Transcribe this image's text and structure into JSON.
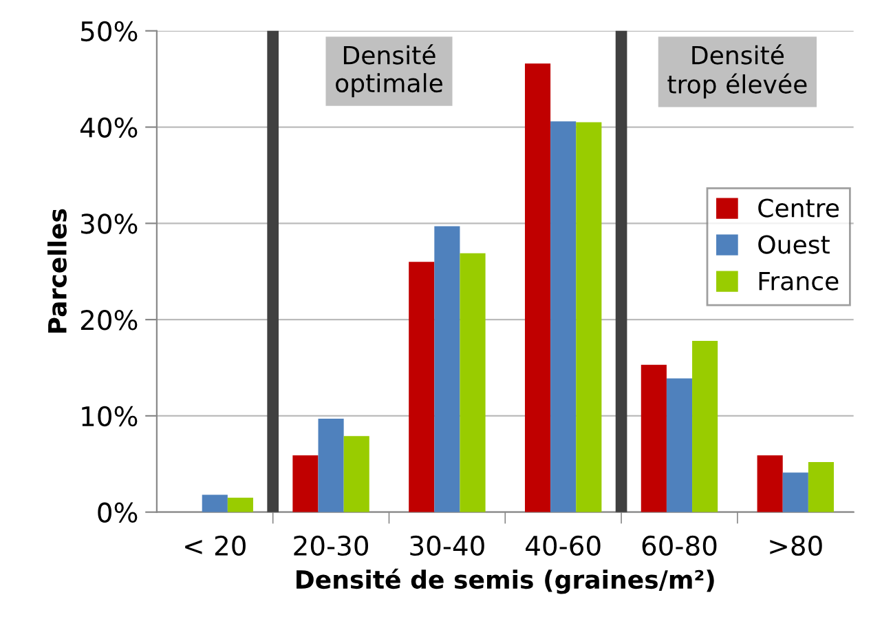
{
  "chart_data": {
    "type": "bar",
    "xlabel": "Densité de semis (graines/m²)",
    "ylabel": "Parcelles",
    "categories": [
      "< 20",
      "20-30",
      "30-40",
      "40-60",
      "60-80",
      ">80"
    ],
    "series": [
      {
        "name": "Centre",
        "color": "#c00000",
        "values": [
          0,
          5.9,
          26.0,
          46.6,
          15.3,
          5.9
        ]
      },
      {
        "name": "Ouest",
        "color": "#4f81bd",
        "values": [
          1.8,
          9.7,
          29.7,
          40.6,
          13.9,
          4.1
        ]
      },
      {
        "name": "France",
        "color": "#99cc00",
        "values": [
          1.5,
          7.9,
          26.9,
          40.5,
          17.8,
          5.2
        ]
      }
    ],
    "ylim": [
      0,
      50
    ],
    "yticks": [
      {
        "value": 0,
        "label": "0%"
      },
      {
        "value": 10,
        "label": "10%"
      },
      {
        "value": 20,
        "label": "20%"
      },
      {
        "value": 30,
        "label": "30%"
      },
      {
        "value": 40,
        "label": "40%"
      },
      {
        "value": 50,
        "label": "50%"
      }
    ],
    "annotations": [
      "Densité\noptimale",
      "Densité\ntrop élevée"
    ],
    "grid": "y",
    "legend": "right"
  }
}
